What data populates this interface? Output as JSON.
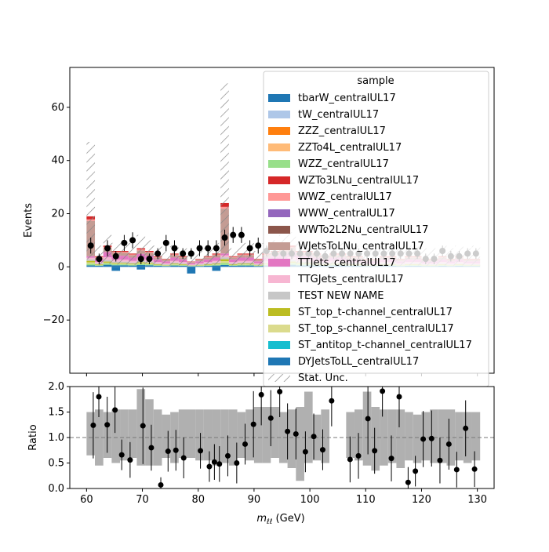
{
  "chart_data": [
    {
      "type": "bar",
      "panel": "main",
      "ylabel": "Events",
      "ylim": [
        -40,
        75
      ],
      "yticks": [
        -20,
        0,
        20,
        40,
        60
      ],
      "xlim": [
        57,
        133
      ],
      "legend": {
        "title": "sample",
        "placement": "top-right",
        "entries": [
          {
            "name": "tbarW_centralUL17",
            "color": "#1f77b4",
            "kind": "fill"
          },
          {
            "name": "tW_centralUL17",
            "color": "#aec7e8",
            "kind": "fill"
          },
          {
            "name": "ZZZ_centralUL17",
            "color": "#ff7f0e",
            "kind": "fill"
          },
          {
            "name": "ZZTo4L_centralUL17",
            "color": "#ffbb78",
            "kind": "fill"
          },
          {
            "name": "WZZ_centralUL17",
            "color": "#98df8a",
            "kind": "fill"
          },
          {
            "name": "WZTo3LNu_centralUL17",
            "color": "#d62728",
            "kind": "fill"
          },
          {
            "name": "WWZ_centralUL17",
            "color": "#ff9896",
            "kind": "fill"
          },
          {
            "name": "WWW_centralUL17",
            "color": "#9467bd",
            "kind": "fill"
          },
          {
            "name": "WWTo2L2Nu_centralUL17",
            "color": "#8c564b",
            "kind": "fill"
          },
          {
            "name": "WJetsToLNu_centralUL17",
            "color": "#c49c94",
            "kind": "fill"
          },
          {
            "name": "TTJets_centralUL17",
            "color": "#e377c2",
            "kind": "fill"
          },
          {
            "name": "TTGJets_centralUL17",
            "color": "#f7b6d2",
            "kind": "fill"
          },
          {
            "name": "TEST NEW NAME",
            "color": "#c7c7c7",
            "kind": "fill"
          },
          {
            "name": "ST_top_t-channel_centralUL17",
            "color": "#bcbd22",
            "kind": "fill"
          },
          {
            "name": "ST_top_s-channel_centralUL17",
            "color": "#dbdb8d",
            "kind": "fill"
          },
          {
            "name": "ST_antitop_t-channel_centralUL17",
            "color": "#17becf",
            "kind": "fill"
          },
          {
            "name": "DYJetsToLL_centralUL17",
            "color": "#1f77b4",
            "kind": "fill"
          },
          {
            "name": "Stat. Unc.",
            "color": "#888888",
            "kind": "hatch"
          }
        ]
      },
      "bins": {
        "start": 60,
        "width": 1.5,
        "count": 47
      },
      "stack_totals": [
        19,
        4,
        8,
        6,
        6,
        5,
        7,
        6,
        4,
        3,
        5,
        4,
        2,
        3,
        4,
        5,
        24,
        4,
        5,
        5,
        3,
        5,
        6,
        7,
        8,
        6,
        6,
        5,
        4,
        5,
        5,
        4,
        4,
        3,
        3,
        4,
        4,
        3,
        4,
        4,
        3,
        3,
        4,
        3,
        4,
        3,
        3
      ],
      "stat_unc_tops": [
        47,
        8,
        12,
        9,
        10,
        9,
        12,
        10,
        8,
        6,
        8,
        7,
        5,
        6,
        7,
        9,
        69,
        7,
        9,
        9,
        6,
        9,
        10,
        12,
        13,
        10,
        10,
        9,
        8,
        9,
        9,
        8,
        8,
        7,
        7,
        8,
        8,
        7,
        8,
        8,
        7,
        7,
        8,
        7,
        8,
        7,
        8
      ],
      "negative_bins": [
        {
          "bin": 3,
          "value": -1.5
        },
        {
          "bin": 6,
          "value": -1
        },
        {
          "bin": 12,
          "value": -2.5
        },
        {
          "bin": 15,
          "value": -1.5
        }
      ],
      "data_points": {
        "x": [
          60.75,
          62.25,
          63.75,
          65.25,
          66.75,
          68.25,
          69.75,
          71.25,
          72.75,
          74.25,
          75.75,
          77.25,
          78.75,
          80.25,
          81.75,
          83.25,
          84.75,
          86.25,
          87.75,
          89.25,
          90.75,
          92.25,
          93.75,
          95.25,
          96.75,
          98.25,
          99.75,
          101.25,
          102.75,
          104.25,
          105.75,
          107.25,
          108.75,
          110.25,
          111.75,
          113.25,
          114.75,
          116.25,
          117.75,
          119.25,
          120.75,
          122.25,
          123.75,
          125.25,
          126.75,
          128.25,
          129.75
        ],
        "y": [
          8,
          3,
          7,
          4,
          9,
          10,
          3,
          3,
          5,
          9,
          7,
          5,
          5,
          7,
          7,
          7,
          11,
          12,
          12,
          7,
          8,
          6,
          5,
          5,
          5,
          5,
          5,
          5,
          4,
          5,
          5,
          5,
          5,
          5,
          5,
          5,
          5,
          5,
          5,
          5,
          3,
          3,
          6,
          4,
          4,
          5,
          5
        ],
        "err": [
          3,
          2,
          3,
          2,
          3,
          3,
          2,
          2,
          2,
          3,
          3,
          2,
          2,
          3,
          3,
          3,
          3,
          3,
          3,
          3,
          3,
          2,
          2,
          2,
          2,
          2,
          2,
          2,
          2,
          2,
          2,
          2,
          2,
          2,
          2,
          2,
          2,
          2,
          2,
          2,
          2,
          2,
          2,
          2,
          2,
          2,
          2
        ]
      }
    },
    {
      "type": "scatter",
      "panel": "ratio",
      "ylabel": "Ratio",
      "xlabel_prefix": "m",
      "xlabel_sub": "ℓℓ",
      "xlabel_suffix": " (GeV)",
      "ylim": [
        0,
        2
      ],
      "yticks": [
        "0.0",
        "0.5",
        "1.0",
        "1.5",
        "2.0"
      ],
      "xlim": [
        57,
        133
      ],
      "xticks": [
        60,
        70,
        80,
        90,
        100,
        110,
        120,
        130
      ],
      "reference_line": 1.0,
      "bins": {
        "start": 60,
        "width": 1.5,
        "count": 47
      },
      "unc_bands": [
        [
          0.65,
          1.5
        ],
        [
          0.45,
          1.55
        ],
        [
          0.6,
          1.5
        ],
        [
          0.5,
          1.55
        ],
        [
          0.55,
          1.55
        ],
        [
          0.6,
          1.55
        ],
        [
          0.45,
          1.95
        ],
        [
          0.45,
          1.75
        ],
        [
          0.45,
          1.55
        ],
        [
          0.6,
          1.45
        ],
        [
          0.5,
          1.5
        ],
        [
          0.6,
          1.55
        ],
        [
          0.6,
          1.55
        ],
        [
          0.55,
          1.55
        ],
        [
          0.55,
          1.55
        ],
        [
          0.45,
          1.55
        ],
        [
          0.5,
          1.55
        ],
        [
          0.45,
          1.55
        ],
        [
          0.6,
          1.5
        ],
        [
          0.55,
          1.55
        ],
        [
          0.5,
          1.6
        ],
        [
          0.5,
          1.6
        ],
        [
          0.6,
          1.6
        ],
        [
          0.5,
          1.5
        ],
        [
          0.4,
          1.55
        ],
        [
          0.15,
          1.6
        ],
        [
          0.5,
          1.9
        ],
        [
          0.55,
          1.45
        ],
        [
          0.5,
          1.55
        ],
        [
          0.5,
          1.45
        ],
        [
          0.5,
          1.45
        ],
        [
          0.6,
          1.5
        ],
        [
          0.55,
          1.55
        ],
        [
          0.45,
          1.9
        ],
        [
          0.35,
          1.6
        ],
        [
          0.45,
          1.55
        ],
        [
          0.5,
          1.55
        ],
        [
          0.4,
          1.55
        ],
        [
          0.55,
          1.5
        ],
        [
          0.5,
          1.45
        ],
        [
          0.55,
          1.5
        ],
        [
          0.5,
          1.55
        ],
        [
          0.5,
          1.55
        ],
        [
          0.45,
          1.55
        ],
        [
          0.55,
          1.5
        ],
        [
          0.5,
          1.5
        ],
        [
          0.55,
          1.5
        ]
      ],
      "points": {
        "x": [
          61.2,
          62.2,
          63.7,
          65.1,
          66.3,
          67.8,
          70.1,
          71.6,
          73.3,
          74.6,
          76.0,
          77.4,
          80.4,
          82.0,
          82.9,
          83.8,
          85.3,
          86.9,
          88.4,
          89.9,
          91.3,
          93.0,
          94.6,
          96.0,
          97.5,
          99.2,
          100.7,
          102.3,
          103.9,
          107.2,
          108.7,
          110.4,
          111.6,
          113.0,
          114.6,
          116.0,
          117.6,
          118.9,
          120.3,
          121.8,
          123.3,
          124.9,
          126.3,
          127.9,
          129.5
        ],
        "y": [
          1.24,
          1.8,
          1.25,
          1.54,
          0.66,
          0.56,
          1.23,
          0.8,
          0.07,
          0.73,
          0.75,
          0.6,
          0.74,
          0.43,
          0.52,
          0.48,
          0.64,
          0.5,
          0.87,
          1.26,
          1.84,
          1.38,
          1.9,
          1.12,
          1.07,
          0.72,
          1.02,
          0.76,
          1.72,
          0.57,
          0.64,
          1.37,
          0.74,
          1.91,
          0.59,
          1.8,
          0.12,
          0.34,
          0.97,
          0.98,
          0.55,
          0.87,
          0.37,
          1.18,
          0.38
        ],
        "err": [
          0.65,
          0.4,
          0.55,
          0.45,
          0.3,
          0.35,
          0.75,
          0.45,
          0.15,
          0.4,
          0.4,
          0.4,
          0.35,
          0.3,
          0.35,
          0.35,
          0.4,
          0.4,
          0.4,
          0.65,
          0.6,
          0.55,
          0.5,
          0.55,
          0.5,
          0.4,
          0.45,
          0.4,
          0.5,
          0.45,
          0.45,
          0.7,
          0.45,
          0.5,
          0.45,
          0.6,
          0.3,
          0.3,
          0.55,
          0.55,
          0.45,
          0.5,
          0.35,
          0.55,
          0.35
        ]
      }
    }
  ]
}
